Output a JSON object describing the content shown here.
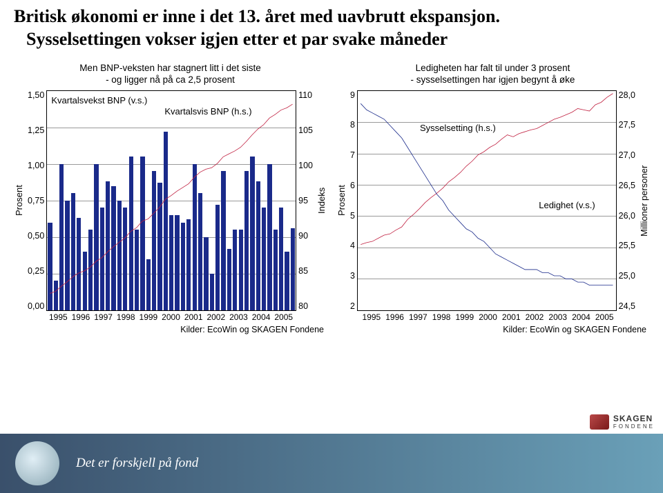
{
  "title": {
    "line1": "Britisk økonomi er inne i det 13. året med uavbrutt ekspansjon.",
    "line2": "Sysselsettingen vokser igjen etter et par svake måneder",
    "fontsize": 26,
    "font_family": "Times New Roman",
    "color": "#000000"
  },
  "left_chart": {
    "type": "bar+line",
    "subtitle_l1": "Men BNP-veksten har stagnert litt i det siste",
    "subtitle_l2": "- og ligger nå på ca 2,5 prosent",
    "y_left_label": "Prosent",
    "y_right_label": "Indeks",
    "y_left": {
      "min": 0.0,
      "max": 1.5,
      "step": 0.25,
      "ticks": [
        "1,50",
        "1,25",
        "1,00",
        "0,75",
        "0,50",
        "0,25",
        "0,00"
      ]
    },
    "y_right": {
      "min": 80,
      "max": 110,
      "step": 5,
      "ticks": [
        "110",
        "105",
        "100",
        "95",
        "90",
        "85",
        "80"
      ]
    },
    "x_labels": [
      "1995",
      "1996",
      "1997",
      "1998",
      "1999",
      "2000",
      "2001",
      "2002",
      "2003",
      "2004",
      "2005"
    ],
    "bars": {
      "label": "Kvartalsvekst BNP (v.s.)",
      "color": "#1a2a8a",
      "width_frac": 0.75,
      "values": [
        0.6,
        0.2,
        1.0,
        0.75,
        0.8,
        0.63,
        0.4,
        0.55,
        1.0,
        0.7,
        0.88,
        0.85,
        0.75,
        0.7,
        1.05,
        0.55,
        1.05,
        0.35,
        0.95,
        0.87,
        1.22,
        0.65,
        0.65,
        0.6,
        0.62,
        1.0,
        0.8,
        0.5,
        0.25,
        0.72,
        0.95,
        0.42,
        0.55,
        0.55,
        0.95,
        1.05,
        0.88,
        0.7,
        1.0,
        0.55,
        0.7,
        0.4,
        0.56
      ]
    },
    "line": {
      "label": "Kvartalsvis BNP (h.s.)",
      "color": "#c02040",
      "width": 2,
      "values": [
        82.3,
        82.6,
        83.3,
        83.9,
        84.6,
        85.1,
        85.4,
        85.9,
        86.7,
        87.2,
        88.0,
        88.7,
        89.3,
        89.9,
        90.8,
        91.3,
        92.2,
        92.5,
        93.3,
        94.1,
        95.2,
        95.7,
        96.3,
        96.8,
        97.3,
        98.2,
        98.9,
        99.3,
        99.5,
        100.1,
        101.0,
        101.4,
        101.8,
        102.3,
        103.1,
        104.0,
        104.8,
        105.4,
        106.3,
        106.8,
        107.4,
        107.7,
        108.2
      ]
    },
    "source": "Kilder: EcoWin og SKAGEN Fondene",
    "grid_color": "#999999",
    "background": "#ffffff",
    "label_fontsize": 13
  },
  "right_chart": {
    "type": "line",
    "subtitle_l1": "Ledigheten har falt til under 3 prosent",
    "subtitle_l2": "- sysselsettingen har igjen begynt å øke",
    "y_left_label": "Prosent",
    "y_right_label": "Millioner personer",
    "y_left": {
      "min": 2,
      "max": 9,
      "step": 1,
      "ticks": [
        "9",
        "8",
        "7",
        "6",
        "5",
        "4",
        "3",
        "2"
      ]
    },
    "y_right": {
      "min": 24.5,
      "max": 28.0,
      "step": 0.5,
      "ticks": [
        "28,0",
        "27,5",
        "27,0",
        "26,5",
        "26,0",
        "25,5",
        "25,0",
        "24,5"
      ]
    },
    "x_labels": [
      "1995",
      "1996",
      "1997",
      "1998",
      "1999",
      "2000",
      "2001",
      "2002",
      "2003",
      "2004",
      "2005"
    ],
    "series": [
      {
        "label": "Sysselsetting (h.s.)",
        "color": "#c02040",
        "width": 2,
        "axis": "right",
        "values": [
          25.55,
          25.58,
          25.6,
          25.65,
          25.7,
          25.72,
          25.78,
          25.83,
          25.95,
          26.03,
          26.12,
          26.22,
          26.3,
          26.37,
          26.45,
          26.55,
          26.62,
          26.7,
          26.8,
          26.88,
          26.98,
          27.03,
          27.1,
          27.15,
          27.23,
          27.3,
          27.27,
          27.32,
          27.35,
          27.38,
          27.4,
          27.45,
          27.5,
          27.55,
          27.58,
          27.62,
          27.66,
          27.72,
          27.7,
          27.68,
          27.78,
          27.82,
          27.9,
          27.96
        ]
      },
      {
        "label": "Ledighet (v.s.)",
        "color": "#1a2a8a",
        "width": 2,
        "axis": "left",
        "values": [
          8.6,
          8.4,
          8.3,
          8.2,
          8.1,
          7.9,
          7.7,
          7.5,
          7.2,
          6.9,
          6.6,
          6.3,
          6.0,
          5.7,
          5.5,
          5.2,
          5.0,
          4.8,
          4.6,
          4.5,
          4.3,
          4.2,
          4.0,
          3.8,
          3.7,
          3.6,
          3.5,
          3.4,
          3.3,
          3.3,
          3.3,
          3.2,
          3.2,
          3.1,
          3.1,
          3.0,
          3.0,
          2.9,
          2.9,
          2.8,
          2.8,
          2.8,
          2.8,
          2.8
        ]
      }
    ],
    "source": "Kilder: EcoWin og SKAGEN Fondene",
    "grid_color": "#999999",
    "background": "#ffffff",
    "label_fontsize": 13
  },
  "footer": {
    "tagline": "Det er forskjell på fond",
    "bg_gradient_from": "#3a506b",
    "bg_gradient_to": "#6aa0b8",
    "text_color": "#ffffff"
  },
  "logo": {
    "text": "SKAGEN",
    "sub": "FONDENE"
  }
}
